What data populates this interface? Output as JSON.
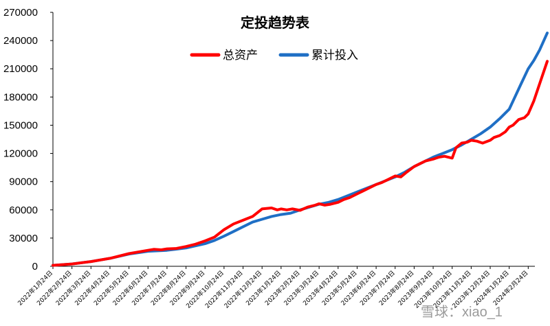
{
  "chart_data": {
    "type": "line",
    "title": "定投趋势表",
    "xlabel": "",
    "ylabel": "",
    "ylim": [
      0,
      270000
    ],
    "yticks": [
      0,
      30000,
      60000,
      90000,
      120000,
      150000,
      180000,
      210000,
      240000,
      270000
    ],
    "ytick_labels": [
      "0",
      "30000",
      "60000",
      "90000",
      "120000",
      "150000",
      "180000",
      "210000",
      "240000",
      "270000"
    ],
    "categories": [
      "2022年1月24日",
      "2022年2月24日",
      "2022年3月24日",
      "2022年4月24日",
      "2022年5月24日",
      "2022年6月24日",
      "2022年7月24日",
      "2022年8月24日",
      "2022年9月24日",
      "2022年10月24日",
      "2022年11月24日",
      "2022年12月24日",
      "2023年1月24日",
      "2023年2月24日",
      "2023年3月24日",
      "2023年4月24日",
      "2023年5月24日",
      "2023年6月24日",
      "2023年7月24日",
      "2023年8月24日",
      "2023年9月24日",
      "2023年10月24日",
      "2023年11月24日",
      "2023年12月24日",
      "2024年1月24日",
      "2024年2月24日"
    ],
    "grid": false,
    "legend_position": "top-center",
    "series": [
      {
        "name": "总资产",
        "color": "#ff0000",
        "x": [
          0,
          1,
          2,
          3,
          4,
          5,
          5.3,
          5.7,
          6,
          6.5,
          7,
          7.5,
          8,
          8.5,
          9,
          9.5,
          10,
          10.5,
          11,
          11.5,
          11.8,
          12,
          12.3,
          12.6,
          13,
          13.4,
          13.8,
          14,
          14.3,
          14.6,
          15,
          15.3,
          15.6,
          16,
          16.3,
          16.6,
          17,
          17.3,
          17.6,
          18,
          18.3,
          18.6,
          19,
          19.3,
          19.6,
          20,
          20.3,
          20.6,
          21,
          21.2,
          21.5,
          21.8,
          22,
          22.3,
          22.6,
          23,
          23.2,
          23.5,
          23.8,
          24,
          24.2,
          24.5,
          24.8,
          25,
          25.3,
          25.6,
          26
        ],
        "values": [
          1000,
          2500,
          5000,
          8500,
          13500,
          17000,
          18000,
          17500,
          18500,
          19000,
          21000,
          23500,
          27000,
          31000,
          39000,
          45000,
          49000,
          53000,
          61000,
          62000,
          60000,
          61000,
          60000,
          61000,
          59500,
          63000,
          65000,
          66500,
          65000,
          66000,
          68000,
          71000,
          73000,
          77000,
          80000,
          83000,
          87000,
          89000,
          92000,
          96000,
          95000,
          100000,
          106000,
          109000,
          112000,
          114000,
          116000,
          117000,
          115000,
          126000,
          131000,
          132000,
          134000,
          133000,
          131000,
          134000,
          137000,
          139000,
          143000,
          148000,
          150000,
          156000,
          158000,
          162000,
          176000,
          194000,
          218000
        ]
      },
      {
        "name": "累计投入",
        "color": "#1f6fc5",
        "x": [
          0,
          1,
          2,
          3,
          4,
          5,
          6,
          7,
          8,
          8.5,
          9,
          9.5,
          10,
          10.5,
          11,
          11.5,
          12,
          12.5,
          13,
          13.5,
          14,
          14.5,
          15,
          15.5,
          16,
          16.5,
          17,
          17.5,
          18,
          18.5,
          19,
          19.5,
          20,
          20.5,
          21,
          21.5,
          22,
          22.5,
          23,
          23.5,
          24,
          24.3,
          24.6,
          25,
          25.3,
          25.6,
          26
        ],
        "values": [
          1000,
          2500,
          5000,
          8500,
          13000,
          16000,
          17000,
          19500,
          24000,
          27500,
          32000,
          37000,
          42000,
          47000,
          50000,
          53000,
          55000,
          56500,
          60000,
          63000,
          66000,
          68000,
          71000,
          75000,
          79000,
          83000,
          87000,
          91000,
          95000,
          100000,
          106000,
          111000,
          116000,
          120000,
          124000,
          129000,
          135000,
          141000,
          148000,
          157000,
          167000,
          180000,
          193000,
          210000,
          219000,
          230000,
          248000
        ]
      }
    ]
  },
  "watermark": "雪球：xiao_1"
}
